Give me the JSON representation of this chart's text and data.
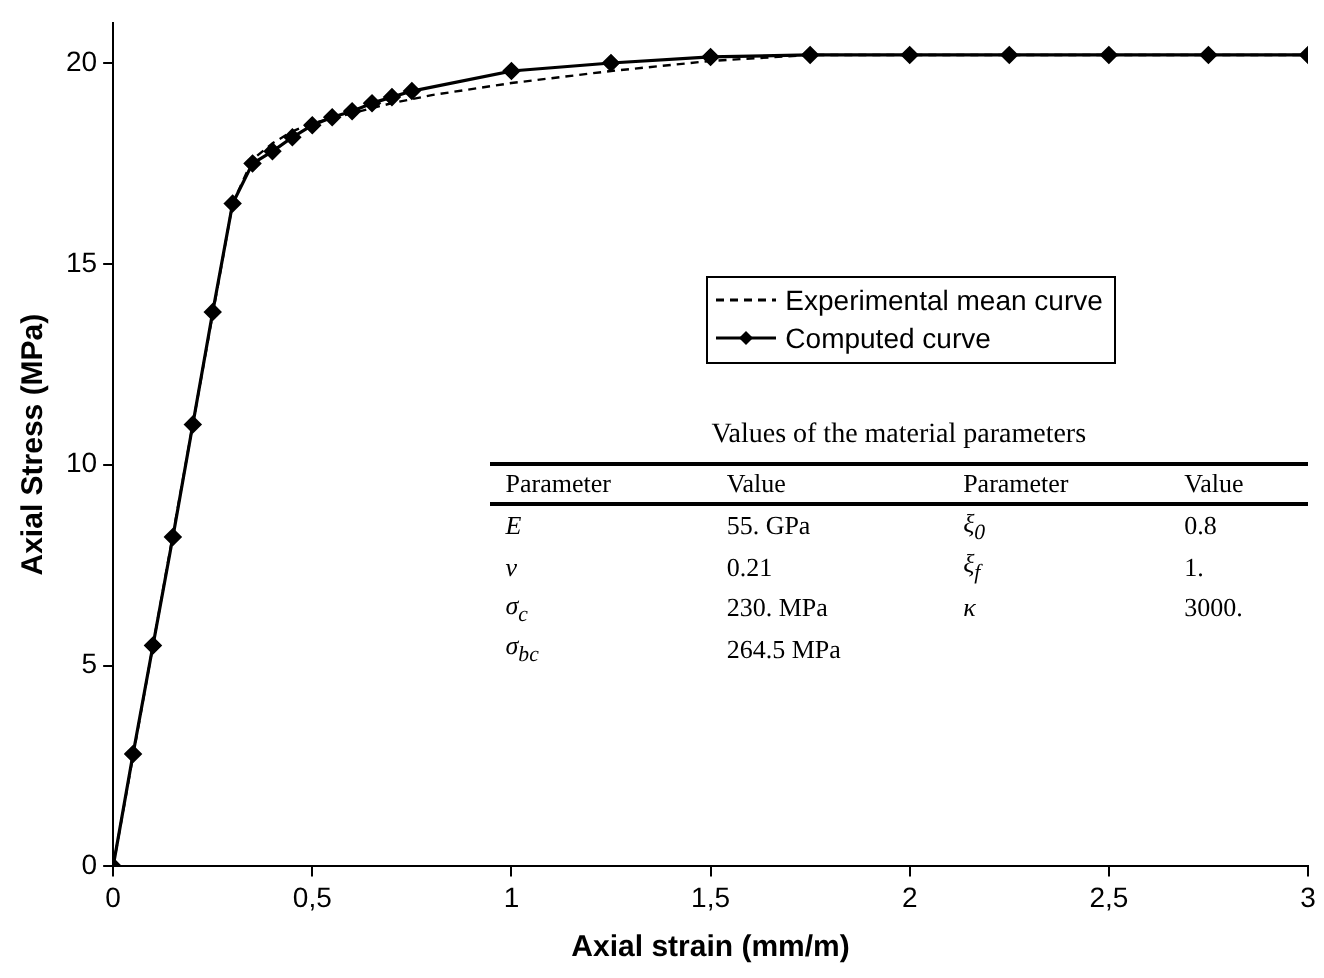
{
  "chart_data": {
    "type": "line",
    "xlabel": "Axial strain (mm/m)",
    "ylabel": "Axial Stress (MPa)",
    "xlim": [
      0,
      3
    ],
    "xticks": [
      0,
      {
        "value": 0.5,
        "label": "0,5"
      },
      1,
      {
        "value": 1.5,
        "label": "1,5"
      },
      2,
      {
        "value": 2.5,
        "label": "2,5"
      },
      3
    ],
    "ylim": [
      0,
      21
    ],
    "yticks": [
      0,
      5,
      10,
      15,
      20
    ],
    "grid": false,
    "legend": "top right",
    "series": [
      {
        "name": "Experimental mean curve",
        "color": "#000000",
        "marker": "none",
        "line_style": "dashed",
        "x": [
          0,
          0.05,
          0.1,
          0.15,
          0.2,
          0.25,
          0.3,
          0.35,
          0.4,
          0.45,
          0.5,
          0.6,
          0.7,
          0.8,
          1,
          1.25,
          1.5,
          1.75,
          2,
          2.5,
          3
        ],
        "values": [
          0,
          2.75,
          5.5,
          8.25,
          11,
          13.75,
          16.5,
          17.6,
          18.0,
          18.3,
          18.5,
          18.75,
          19.0,
          19.2,
          19.5,
          19.8,
          20.05,
          20.2,
          20.2,
          20.2,
          20.2
        ]
      },
      {
        "name": "Computed curve",
        "color": "#000000",
        "marker": "diamond",
        "line_style": "solid",
        "x": [
          0,
          0.05,
          0.1,
          0.15,
          0.2,
          0.25,
          0.3,
          0.35,
          0.4,
          0.45,
          0.5,
          0.55,
          0.6,
          0.65,
          0.7,
          0.75,
          1,
          1.25,
          1.5,
          1.75,
          2,
          2.25,
          2.5,
          2.75,
          3
        ],
        "values": [
          0,
          2.8,
          5.5,
          8.2,
          11,
          13.8,
          16.5,
          17.5,
          17.8,
          18.15,
          18.45,
          18.65,
          18.8,
          19.0,
          19.15,
          19.3,
          19.8,
          20.0,
          20.15,
          20.2,
          20.2,
          20.2,
          20.2,
          20.2,
          20.2
        ]
      }
    ],
    "annotations": [
      "Values of the material parameters",
      "Parameter",
      "Value",
      "Parameter",
      "Value",
      "E",
      "55. GPa",
      "ξ$_{0}$",
      "0.8",
      "ν",
      "0.21",
      "ξ$_{f}$",
      "1.",
      "σ$_{c}$",
      "230. MPa",
      "κ",
      "3000.",
      "σ$_{bc}$",
      "264.5 MPa"
    ]
  }
}
